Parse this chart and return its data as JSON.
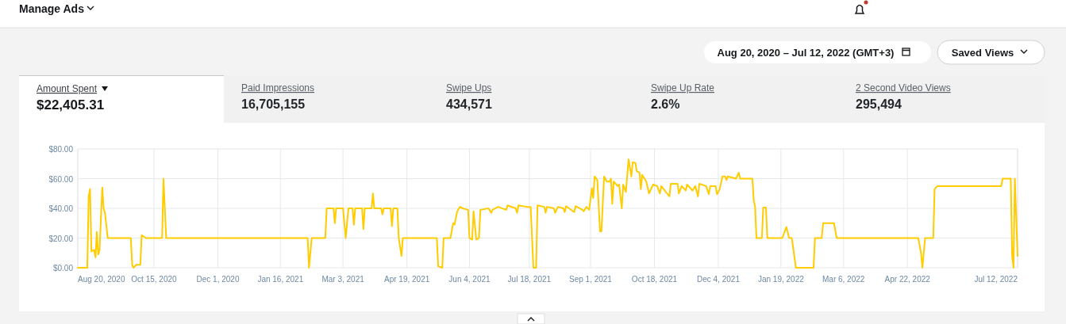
{
  "chart_data": {
    "type": "line",
    "title": "Amount Spent",
    "subtitle": "$22,405.31",
    "annotations": [
      "Manage Ads",
      "Aug 20, 2020 – Jul 12, 2022 (GMT+3)",
      "Saved Views",
      "Paid Impressions",
      "16,705,155",
      "Swipe Ups",
      "434,571",
      "Swipe Up Rate",
      "2.6%",
      "2 Second Video Views",
      "295,494"
    ],
    "x": [
      "2020-08-20",
      "2020-08-27",
      "2020-08-28",
      "2020-08-29",
      "2020-08-30",
      "2020-09-01",
      "2020-09-02",
      "2020-09-03",
      "2020-09-04",
      "2020-09-05",
      "2020-09-07",
      "2020-09-08",
      "2020-09-09",
      "2020-09-11",
      "2020-09-28",
      "2020-09-29",
      "2020-09-30",
      "2020-10-02",
      "2020-10-05",
      "2020-10-06",
      "2020-10-09",
      "2020-10-21",
      "2020-10-22",
      "2020-10-24",
      "2021-01-26",
      "2021-02-05",
      "2021-02-06",
      "2021-02-08",
      "2021-02-18",
      "2021-02-19",
      "2021-02-24",
      "2021-02-25",
      "2021-02-26",
      "2021-03-03",
      "2021-03-05",
      "2021-03-07",
      "2021-03-10",
      "2021-03-11",
      "2021-03-12",
      "2021-03-17",
      "2021-03-18",
      "2021-03-19",
      "2021-03-24",
      "2021-03-25",
      "2021-03-26",
      "2021-03-31",
      "2021-04-01",
      "2021-04-02",
      "2021-04-07",
      "2021-04-08",
      "2021-04-09",
      "2021-04-12",
      "2021-04-13",
      "2021-04-15",
      "2021-04-16",
      "2021-05-11",
      "2021-05-12",
      "2021-05-15",
      "2021-05-16",
      "2021-05-21",
      "2021-05-23",
      "2021-05-24",
      "2021-05-26",
      "2021-05-28",
      "2021-05-30",
      "2021-06-03",
      "2021-06-04",
      "2021-06-06",
      "2021-06-07",
      "2021-06-09",
      "2021-06-11",
      "2021-06-12",
      "2021-06-18",
      "2021-06-20",
      "2021-06-21",
      "2021-06-25",
      "2021-07-01",
      "2021-07-02",
      "2021-07-08",
      "2021-07-09",
      "2021-07-10",
      "2021-07-16",
      "2021-07-17",
      "2021-07-19",
      "2021-07-20",
      "2021-07-21",
      "2021-07-23",
      "2021-07-24",
      "2021-07-29",
      "2021-07-30",
      "2021-07-31",
      "2021-08-05",
      "2021-08-06",
      "2021-08-08",
      "2021-08-12",
      "2021-08-13",
      "2021-08-14",
      "2021-08-20",
      "2021-08-21",
      "2021-08-26",
      "2021-08-27",
      "2021-08-29",
      "2021-08-31",
      "2021-09-02",
      "2021-09-03",
      "2021-09-04",
      "2021-09-06",
      "2021-09-08",
      "2021-09-09",
      "2021-09-11",
      "2021-09-13",
      "2021-09-15",
      "2021-09-16",
      "2021-09-17",
      "2021-09-18",
      "2021-09-21",
      "2021-09-22",
      "2021-09-24",
      "2021-09-25",
      "2021-09-27",
      "2021-09-29",
      "2021-10-01",
      "2021-10-02",
      "2021-10-04",
      "2021-10-05",
      "2021-10-07",
      "2021-10-08",
      "2021-10-09",
      "2021-10-12",
      "2021-10-14",
      "2021-10-17",
      "2021-10-20",
      "2021-10-22",
      "2021-10-23",
      "2021-10-29",
      "2021-10-30",
      "2021-11-04",
      "2021-11-05",
      "2021-11-07",
      "2021-11-10",
      "2021-11-11",
      "2021-11-15",
      "2021-11-17",
      "2021-11-19",
      "2021-11-20",
      "2021-11-25",
      "2021-11-27",
      "2021-11-28",
      "2021-12-02",
      "2021-12-03",
      "2021-12-05",
      "2021-12-07",
      "2021-12-09",
      "2021-12-10",
      "2021-12-11",
      "2021-12-17",
      "2021-12-19",
      "2021-12-20",
      "2021-12-29",
      "2021-12-30",
      "2021-12-31",
      "2022-01-01",
      "2022-01-05",
      "2022-01-06",
      "2022-01-08",
      "2022-01-09",
      "2022-01-20",
      "2022-01-23",
      "2022-01-25",
      "2022-01-27",
      "2022-01-30",
      "2022-02-12",
      "2022-02-13",
      "2022-02-18",
      "2022-02-19",
      "2022-02-27",
      "2022-03-01",
      "2022-04-30",
      "2022-05-02",
      "2022-05-03",
      "2022-05-05",
      "2022-05-11",
      "2022-05-12",
      "2022-05-14",
      "2022-06-30",
      "2022-07-01",
      "2022-07-07",
      "2022-07-08",
      "2022-07-09",
      "2022-07-10",
      "2022-07-12"
    ],
    "series": [
      {
        "color": "#ffcc00",
        "values": [
          0,
          0,
          48,
          53,
          11,
          12,
          7,
          24,
          9,
          12,
          54,
          40,
          37,
          20,
          20,
          2,
          0,
          2,
          2,
          22,
          20,
          20,
          60,
          20,
          20,
          20,
          0,
          20,
          20,
          40,
          40,
          30,
          40,
          40,
          20,
          40,
          40,
          29,
          40,
          40,
          26,
          40,
          40,
          50,
          40,
          40,
          36,
          40,
          40,
          28,
          40,
          40,
          20,
          8,
          20,
          20,
          1,
          0,
          20,
          20,
          30,
          29,
          38,
          41,
          40,
          39,
          20,
          19,
          38,
          19,
          20,
          39,
          40,
          37,
          39,
          41,
          39,
          42,
          40,
          37,
          42,
          41,
          41,
          41,
          20,
          0,
          0,
          42,
          41,
          37,
          41,
          40,
          37,
          41,
          40,
          37.5,
          41.5,
          37.5,
          41.5,
          39,
          38,
          41,
          39,
          53.5,
          47,
          61.5,
          59,
          24.5,
          24.5,
          61.5,
          58,
          58,
          60,
          43,
          58,
          55,
          56,
          40,
          56,
          51,
          73,
          61.5,
          71,
          70.5,
          65,
          64,
          53,
          62.5,
          58,
          50,
          56,
          55,
          50,
          55,
          48,
          56.5,
          56.5,
          50,
          55,
          52,
          56,
          52,
          55,
          48,
          56.5,
          55,
          49.5,
          55,
          55,
          49.5,
          53,
          61.5,
          61.5,
          59,
          61.5,
          60,
          64,
          60,
          60,
          45.5,
          41,
          20,
          20,
          40.5,
          40.5,
          20,
          20,
          27.5,
          20,
          20,
          0,
          0,
          20,
          20,
          30,
          30,
          20,
          20,
          10,
          0,
          20,
          20,
          53,
          55,
          55,
          60,
          60,
          8,
          0,
          60,
          8
        ]
      }
    ],
    "xlim": [
      "2020-08-20",
      "2022-07-12"
    ],
    "xticks": [
      {
        "value": "2020-08-20",
        "label": "Aug 20, 2020"
      },
      {
        "value": "2020-10-15",
        "label": "Oct 15, 2020"
      },
      {
        "value": "2020-12-01",
        "label": "Dec 1, 2020"
      },
      {
        "value": "2021-01-16",
        "label": "Jan 16, 2021"
      },
      {
        "value": "2021-03-03",
        "label": "Mar 3, 2021"
      },
      {
        "value": "2021-04-19",
        "label": "Apr 19, 2021"
      },
      {
        "value": "2021-06-04",
        "label": "Jun 4, 2021"
      },
      {
        "value": "2021-07-18",
        "label": "Jul 18, 2021"
      },
      {
        "value": "2021-09-01",
        "label": "Sep 1, 2021"
      },
      {
        "value": "2021-10-18",
        "label": "Oct 18, 2021"
      },
      {
        "value": "2021-12-04",
        "label": "Dec 4, 2021"
      },
      {
        "value": "2022-01-19",
        "label": "Jan 19, 2022"
      },
      {
        "value": "2022-03-06",
        "label": "Mar 6, 2022"
      },
      {
        "value": "2022-04-22",
        "label": "Apr 22, 2022"
      },
      {
        "value": "2022-07-12",
        "label": "Jul 12, 2022"
      }
    ],
    "ylim": [
      0,
      80
    ],
    "yticks": [
      {
        "value": 0,
        "label": "$0.00"
      },
      {
        "value": 20,
        "label": "$20.00"
      },
      {
        "value": 40,
        "label": "$40.00"
      },
      {
        "value": 60,
        "label": "$60.00"
      },
      {
        "value": 80,
        "label": "$80.00"
      }
    ],
    "grid": true,
    "marker": "none",
    "line_style": "solid"
  }
}
